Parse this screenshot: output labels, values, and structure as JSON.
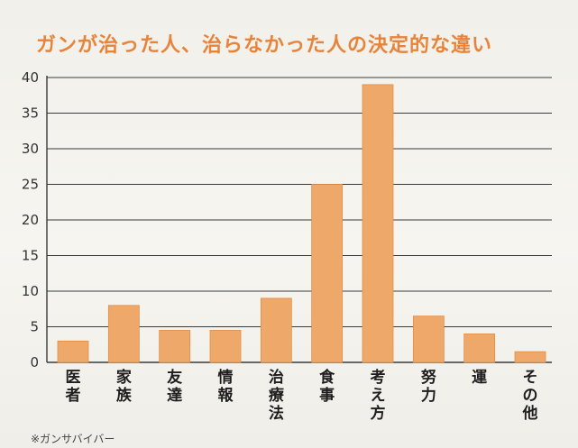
{
  "title": "ガンが治った人、治らなかった人の決定的な違い",
  "footnote": "※ガンサバイバー",
  "chart_data": {
    "type": "bar",
    "title": "ガンが治った人、治らなかった人の決定的な違い",
    "categories": [
      "医者",
      "家族",
      "友達",
      "情報",
      "治療法",
      "食事",
      "考え方",
      "努力",
      "運",
      "その他"
    ],
    "values": [
      3,
      8,
      4.5,
      4.5,
      9,
      25,
      39,
      6.5,
      4,
      1.5
    ],
    "xlabel": "",
    "ylabel": "",
    "ylim": [
      0,
      40
    ],
    "yticks": [
      0,
      5,
      10,
      15,
      20,
      25,
      30,
      35,
      40
    ],
    "grid": true,
    "legend": "none",
    "bar_color": "#eda86a",
    "bar_edge_color": "#e08f47",
    "title_color": "#e8843a"
  }
}
